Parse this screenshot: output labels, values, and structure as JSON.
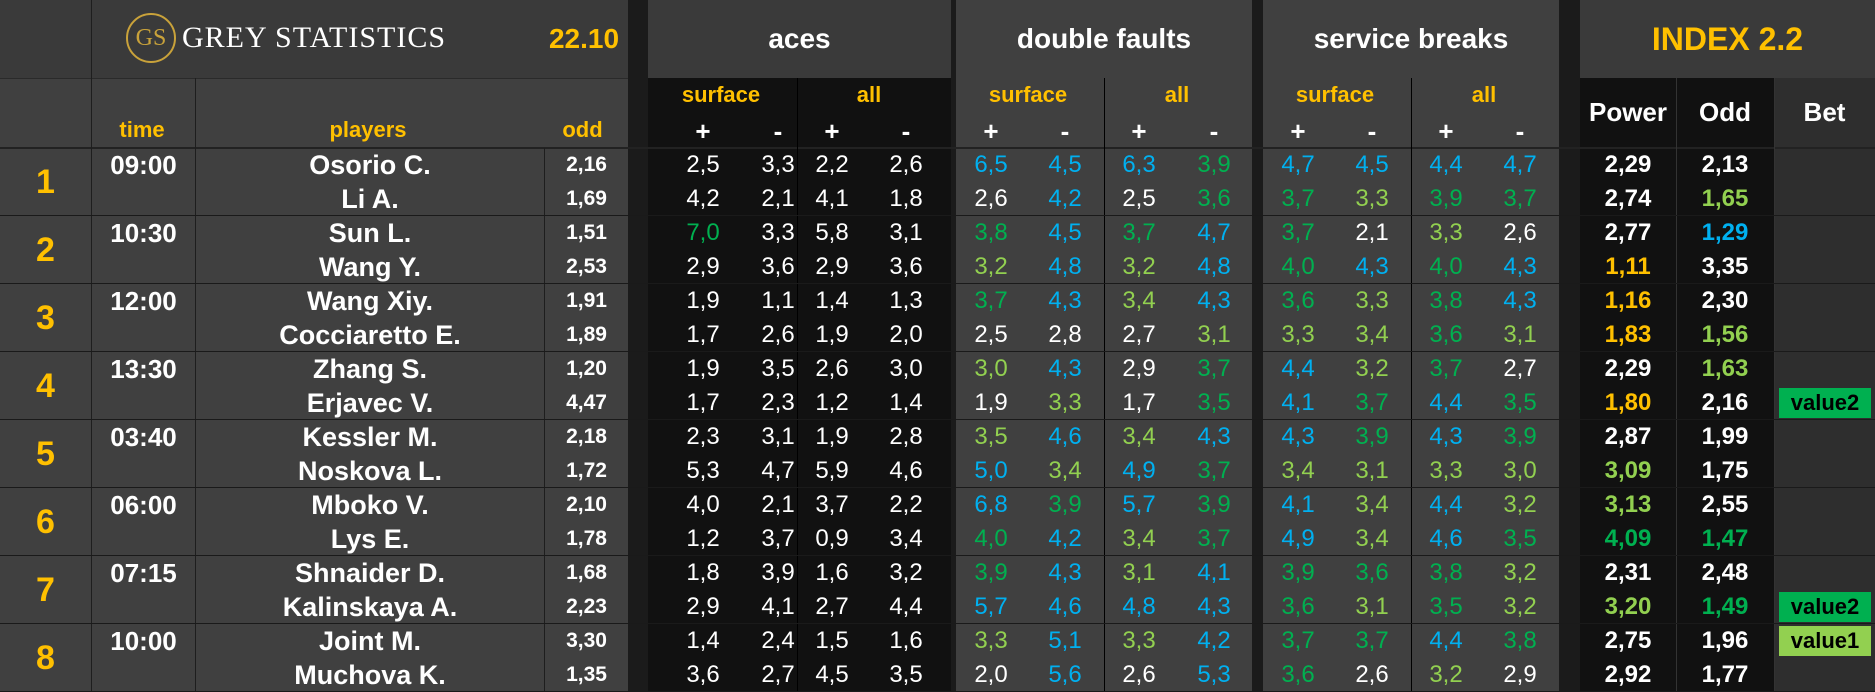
{
  "header": {
    "logo_mark": "GS",
    "logo_text": "GREY STATISTICS",
    "date": "22.10",
    "time_label": "time",
    "players_label": "players",
    "odd_label": "odd",
    "groups": [
      {
        "label": "aces",
        "sub": [
          "surface",
          "all"
        ]
      },
      {
        "label": "double faults",
        "sub": [
          "surface",
          "all"
        ]
      },
      {
        "label": "service breaks",
        "sub": [
          "surface",
          "all"
        ]
      }
    ],
    "plus": "+",
    "minus": "-",
    "index_title": "INDEX 2.2",
    "power_label": "Power",
    "odd2_label": "Odd",
    "bet_label": "Bet"
  },
  "colors": {
    "yellow": "#ffc000",
    "white": "#ffffff",
    "lightgreen": "#92d050",
    "green": "#00b050",
    "blue": "#00b0f0",
    "bet_value2": "#00b050",
    "bet_value1": "#92d050"
  },
  "matches": [
    {
      "num": "1",
      "time": "09:00",
      "players": [
        {
          "name": "Osorio C.",
          "odd": "2,16",
          "stats": [
            [
              "2,5",
              "w"
            ],
            [
              "3,3",
              "w"
            ],
            [
              "2,2",
              "w"
            ],
            [
              "2,6",
              "w"
            ],
            [
              "6,5",
              "bl"
            ],
            [
              "4,5",
              "bl"
            ],
            [
              "6,3",
              "bl"
            ],
            [
              "3,9",
              "gr"
            ],
            [
              "4,7",
              "bl"
            ],
            [
              "4,5",
              "bl"
            ],
            [
              "4,4",
              "bl"
            ],
            [
              "4,7",
              "bl"
            ]
          ],
          "power": [
            "2,29",
            "w"
          ],
          "odd2": [
            "2,13",
            "w"
          ],
          "bet": ""
        },
        {
          "name": "Li A.",
          "odd": "1,69",
          "stats": [
            [
              "4,2",
              "w"
            ],
            [
              "2,1",
              "w"
            ],
            [
              "4,1",
              "w"
            ],
            [
              "1,8",
              "w"
            ],
            [
              "2,6",
              "w"
            ],
            [
              "4,2",
              "bl"
            ],
            [
              "2,5",
              "w"
            ],
            [
              "3,6",
              "gr"
            ],
            [
              "3,7",
              "gr"
            ],
            [
              "3,3",
              "lg"
            ],
            [
              "3,9",
              "gr"
            ],
            [
              "3,7",
              "gr"
            ]
          ],
          "power": [
            "2,74",
            "w"
          ],
          "odd2": [
            "1,65",
            "lg"
          ],
          "bet": ""
        }
      ]
    },
    {
      "num": "2",
      "time": "10:30",
      "players": [
        {
          "name": "Sun L.",
          "odd": "1,51",
          "stats": [
            [
              "7,0",
              "gr"
            ],
            [
              "3,3",
              "w"
            ],
            [
              "5,8",
              "w"
            ],
            [
              "3,1",
              "w"
            ],
            [
              "3,8",
              "gr"
            ],
            [
              "4,5",
              "bl"
            ],
            [
              "3,7",
              "gr"
            ],
            [
              "4,7",
              "bl"
            ],
            [
              "3,7",
              "gr"
            ],
            [
              "2,1",
              "w"
            ],
            [
              "3,3",
              "lg"
            ],
            [
              "2,6",
              "w"
            ]
          ],
          "power": [
            "2,77",
            "w"
          ],
          "odd2": [
            "1,29",
            "bl"
          ],
          "bet": ""
        },
        {
          "name": "Wang Y.",
          "odd": "2,53",
          "stats": [
            [
              "2,9",
              "w"
            ],
            [
              "3,6",
              "w"
            ],
            [
              "2,9",
              "w"
            ],
            [
              "3,6",
              "w"
            ],
            [
              "3,2",
              "lg"
            ],
            [
              "4,8",
              "bl"
            ],
            [
              "3,2",
              "lg"
            ],
            [
              "4,8",
              "bl"
            ],
            [
              "4,0",
              "gr"
            ],
            [
              "4,3",
              "bl"
            ],
            [
              "4,0",
              "gr"
            ],
            [
              "4,3",
              "bl"
            ]
          ],
          "power": [
            "1,11",
            "y"
          ],
          "odd2": [
            "3,35",
            "w"
          ],
          "bet": ""
        }
      ]
    },
    {
      "num": "3",
      "time": "12:00",
      "players": [
        {
          "name": "Wang Xiy.",
          "odd": "1,91",
          "stats": [
            [
              "1,9",
              "w"
            ],
            [
              "1,1",
              "w"
            ],
            [
              "1,4",
              "w"
            ],
            [
              "1,3",
              "w"
            ],
            [
              "3,7",
              "gr"
            ],
            [
              "4,3",
              "bl"
            ],
            [
              "3,4",
              "lg"
            ],
            [
              "4,3",
              "bl"
            ],
            [
              "3,6",
              "gr"
            ],
            [
              "3,3",
              "lg"
            ],
            [
              "3,8",
              "gr"
            ],
            [
              "4,3",
              "bl"
            ]
          ],
          "power": [
            "1,16",
            "y"
          ],
          "odd2": [
            "2,30",
            "w"
          ],
          "bet": ""
        },
        {
          "name": "Cocciaretto E.",
          "odd": "1,89",
          "stats": [
            [
              "1,7",
              "w"
            ],
            [
              "2,6",
              "w"
            ],
            [
              "1,9",
              "w"
            ],
            [
              "2,0",
              "w"
            ],
            [
              "2,5",
              "w"
            ],
            [
              "2,8",
              "w"
            ],
            [
              "2,7",
              "w"
            ],
            [
              "3,1",
              "lg"
            ],
            [
              "3,3",
              "lg"
            ],
            [
              "3,4",
              "lg"
            ],
            [
              "3,6",
              "gr"
            ],
            [
              "3,1",
              "lg"
            ]
          ],
          "power": [
            "1,83",
            "y"
          ],
          "odd2": [
            "1,56",
            "lg"
          ],
          "bet": ""
        }
      ]
    },
    {
      "num": "4",
      "time": "13:30",
      "players": [
        {
          "name": "Zhang S.",
          "odd": "1,20",
          "stats": [
            [
              "1,9",
              "w"
            ],
            [
              "3,5",
              "w"
            ],
            [
              "2,6",
              "w"
            ],
            [
              "3,0",
              "w"
            ],
            [
              "3,0",
              "lg"
            ],
            [
              "4,3",
              "bl"
            ],
            [
              "2,9",
              "w"
            ],
            [
              "3,7",
              "gr"
            ],
            [
              "4,4",
              "bl"
            ],
            [
              "3,2",
              "lg"
            ],
            [
              "3,7",
              "gr"
            ],
            [
              "2,7",
              "w"
            ]
          ],
          "power": [
            "2,29",
            "w"
          ],
          "odd2": [
            "1,63",
            "lg"
          ],
          "bet": ""
        },
        {
          "name": "Erjavec V.",
          "odd": "4,47",
          "stats": [
            [
              "1,7",
              "w"
            ],
            [
              "2,3",
              "w"
            ],
            [
              "1,2",
              "w"
            ],
            [
              "1,4",
              "w"
            ],
            [
              "1,9",
              "w"
            ],
            [
              "3,3",
              "lg"
            ],
            [
              "1,7",
              "w"
            ],
            [
              "3,5",
              "gr"
            ],
            [
              "4,1",
              "bl"
            ],
            [
              "3,7",
              "gr"
            ],
            [
              "4,4",
              "bl"
            ],
            [
              "3,5",
              "gr"
            ]
          ],
          "power": [
            "1,80",
            "y"
          ],
          "odd2": [
            "2,16",
            "w"
          ],
          "bet": "value2"
        }
      ]
    },
    {
      "num": "5",
      "time": "03:40",
      "players": [
        {
          "name": "Kessler M.",
          "odd": "2,18",
          "stats": [
            [
              "2,3",
              "w"
            ],
            [
              "3,1",
              "w"
            ],
            [
              "1,9",
              "w"
            ],
            [
              "2,8",
              "w"
            ],
            [
              "3,5",
              "lg"
            ],
            [
              "4,6",
              "bl"
            ],
            [
              "3,4",
              "lg"
            ],
            [
              "4,3",
              "bl"
            ],
            [
              "4,3",
              "bl"
            ],
            [
              "3,9",
              "gr"
            ],
            [
              "4,3",
              "bl"
            ],
            [
              "3,9",
              "gr"
            ]
          ],
          "power": [
            "2,87",
            "w"
          ],
          "odd2": [
            "1,99",
            "w"
          ],
          "bet": ""
        },
        {
          "name": "Noskova L.",
          "odd": "1,72",
          "stats": [
            [
              "5,3",
              "w"
            ],
            [
              "4,7",
              "w"
            ],
            [
              "5,9",
              "w"
            ],
            [
              "4,6",
              "w"
            ],
            [
              "5,0",
              "bl"
            ],
            [
              "3,4",
              "lg"
            ],
            [
              "4,9",
              "bl"
            ],
            [
              "3,7",
              "gr"
            ],
            [
              "3,4",
              "lg"
            ],
            [
              "3,1",
              "lg"
            ],
            [
              "3,3",
              "lg"
            ],
            [
              "3,0",
              "lg"
            ]
          ],
          "power": [
            "3,09",
            "lg"
          ],
          "odd2": [
            "1,75",
            "w"
          ],
          "bet": ""
        }
      ]
    },
    {
      "num": "6",
      "time": "06:00",
      "players": [
        {
          "name": "Mboko V.",
          "odd": "2,10",
          "stats": [
            [
              "4,0",
              "w"
            ],
            [
              "2,1",
              "w"
            ],
            [
              "3,7",
              "w"
            ],
            [
              "2,2",
              "w"
            ],
            [
              "6,8",
              "bl"
            ],
            [
              "3,9",
              "gr"
            ],
            [
              "5,7",
              "bl"
            ],
            [
              "3,9",
              "gr"
            ],
            [
              "4,1",
              "bl"
            ],
            [
              "3,4",
              "lg"
            ],
            [
              "4,4",
              "bl"
            ],
            [
              "3,2",
              "lg"
            ]
          ],
          "power": [
            "3,13",
            "lg"
          ],
          "odd2": [
            "2,55",
            "w"
          ],
          "bet": ""
        },
        {
          "name": "Lys E.",
          "odd": "1,78",
          "stats": [
            [
              "1,2",
              "w"
            ],
            [
              "3,7",
              "w"
            ],
            [
              "0,9",
              "w"
            ],
            [
              "3,4",
              "w"
            ],
            [
              "4,0",
              "gr"
            ],
            [
              "4,2",
              "bl"
            ],
            [
              "3,4",
              "lg"
            ],
            [
              "3,7",
              "gr"
            ],
            [
              "4,9",
              "bl"
            ],
            [
              "3,4",
              "lg"
            ],
            [
              "4,6",
              "bl"
            ],
            [
              "3,5",
              "gr"
            ]
          ],
          "power": [
            "4,09",
            "gr"
          ],
          "odd2": [
            "1,47",
            "gr"
          ],
          "bet": ""
        }
      ]
    },
    {
      "num": "7",
      "time": "07:15",
      "players": [
        {
          "name": "Shnaider D.",
          "odd": "1,68",
          "stats": [
            [
              "1,8",
              "w"
            ],
            [
              "3,9",
              "w"
            ],
            [
              "1,6",
              "w"
            ],
            [
              "3,2",
              "w"
            ],
            [
              "3,9",
              "gr"
            ],
            [
              "4,3",
              "bl"
            ],
            [
              "3,1",
              "lg"
            ],
            [
              "4,1",
              "bl"
            ],
            [
              "3,9",
              "gr"
            ],
            [
              "3,6",
              "gr"
            ],
            [
              "3,8",
              "gr"
            ],
            [
              "3,2",
              "lg"
            ]
          ],
          "power": [
            "2,31",
            "w"
          ],
          "odd2": [
            "2,48",
            "w"
          ],
          "bet": ""
        },
        {
          "name": "Kalinskaya A.",
          "odd": "2,23",
          "stats": [
            [
              "2,9",
              "w"
            ],
            [
              "4,1",
              "w"
            ],
            [
              "2,7",
              "w"
            ],
            [
              "4,4",
              "w"
            ],
            [
              "5,7",
              "bl"
            ],
            [
              "4,6",
              "bl"
            ],
            [
              "4,8",
              "bl"
            ],
            [
              "4,3",
              "bl"
            ],
            [
              "3,6",
              "gr"
            ],
            [
              "3,1",
              "lg"
            ],
            [
              "3,5",
              "gr"
            ],
            [
              "3,2",
              "lg"
            ]
          ],
          "power": [
            "3,20",
            "lg"
          ],
          "odd2": [
            "1,49",
            "gr"
          ],
          "bet": "value2"
        }
      ]
    },
    {
      "num": "8",
      "time": "10:00",
      "players": [
        {
          "name": "Joint M.",
          "odd": "3,30",
          "stats": [
            [
              "1,4",
              "w"
            ],
            [
              "2,4",
              "w"
            ],
            [
              "1,5",
              "w"
            ],
            [
              "1,6",
              "w"
            ],
            [
              "3,3",
              "lg"
            ],
            [
              "5,1",
              "bl"
            ],
            [
              "3,3",
              "lg"
            ],
            [
              "4,2",
              "bl"
            ],
            [
              "3,7",
              "gr"
            ],
            [
              "3,7",
              "gr"
            ],
            [
              "4,4",
              "bl"
            ],
            [
              "3,8",
              "gr"
            ]
          ],
          "power": [
            "2,75",
            "w"
          ],
          "odd2": [
            "1,96",
            "w"
          ],
          "bet": "value1"
        },
        {
          "name": "Muchova K.",
          "odd": "1,35",
          "stats": [
            [
              "3,6",
              "w"
            ],
            [
              "2,7",
              "w"
            ],
            [
              "4,5",
              "w"
            ],
            [
              "3,5",
              "w"
            ],
            [
              "2,0",
              "w"
            ],
            [
              "5,6",
              "bl"
            ],
            [
              "2,6",
              "w"
            ],
            [
              "5,3",
              "bl"
            ],
            [
              "3,6",
              "gr"
            ],
            [
              "2,6",
              "w"
            ],
            [
              "3,2",
              "lg"
            ],
            [
              "2,9",
              "w"
            ]
          ],
          "power": [
            "2,92",
            "w"
          ],
          "odd2": [
            "1,77",
            "w"
          ],
          "bet": ""
        }
      ]
    }
  ]
}
